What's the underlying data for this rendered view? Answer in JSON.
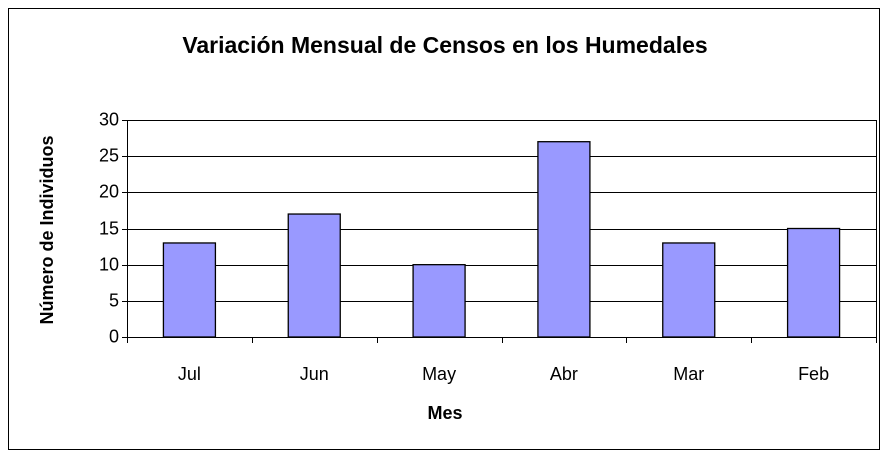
{
  "chart_data": {
    "type": "bar",
    "title": "Variación Mensual de Censos en los Humedales",
    "x_label": "Mes",
    "y_label": "Número de Individuos",
    "categories": [
      "Jul",
      "Jun",
      "May",
      "Abr",
      "Mar",
      "Feb"
    ],
    "values": [
      13,
      17,
      10,
      27,
      13,
      15
    ],
    "color": "#9999ff",
    "ylim": [
      0,
      30
    ],
    "yticks": [
      0,
      5,
      10,
      15,
      20,
      25,
      30
    ],
    "grid": true
  }
}
